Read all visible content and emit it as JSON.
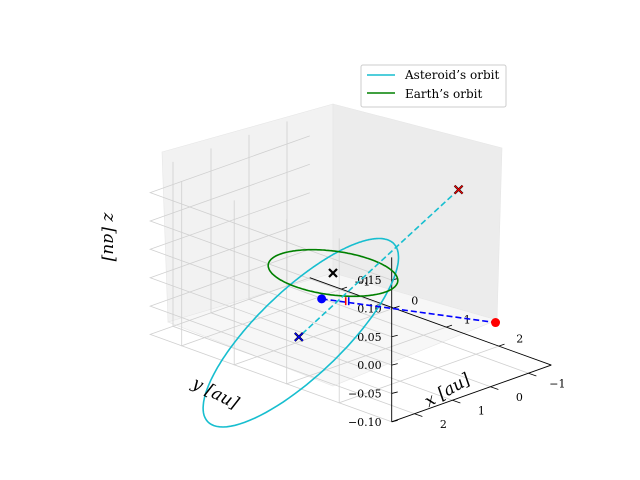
{
  "chart_data": {
    "type": "line3d",
    "title": "",
    "xlabel": "$x$ [au]",
    "ylabel": "$y$ [au]",
    "zlabel": "$z$ [au]",
    "xlabel_text": "x [au]",
    "ylabel_text": "y [au]",
    "zlabel_text": "z [au]",
    "xlim": [
      -1.6,
      3.0
    ],
    "ylim": [
      -1.6,
      2.6
    ],
    "zlim": [
      -0.1,
      0.19
    ],
    "xticks": [
      -1,
      0,
      1,
      2
    ],
    "yticks": [
      -1,
      0,
      1,
      2
    ],
    "zticks": [
      -0.1,
      -0.05,
      0.0,
      0.05,
      0.1,
      0.15
    ],
    "xtick_labels": [
      "−1",
      "0",
      "1",
      "2"
    ],
    "ytick_labels": [
      "−1",
      "0",
      "1",
      "2"
    ],
    "ztick_labels": [
      "−0.10",
      "−0.05",
      "0.00",
      "0.05",
      "0.10",
      "0.15"
    ],
    "grid": true,
    "legend_position": "top-right",
    "series": [
      {
        "name": "Asteroid’s orbit",
        "color": "#17becf",
        "kind": "ellipse",
        "semi_major_axis": 2.0,
        "eccentricity": 0.7,
        "inclination_deg": 5.0,
        "ascending_node_deg": 225,
        "argument_of_perihelion_deg": 30
      },
      {
        "name": "Earth’s orbit",
        "color": "#008000",
        "kind": "circle",
        "radius": 1.0,
        "z": 0.0
      }
    ],
    "markers": [
      {
        "label": "",
        "color": "#0000ff",
        "symbol": "dot",
        "x": 0.58,
        "y": 1.1,
        "z": 0.0
      },
      {
        "label": "",
        "color": "#ff0000",
        "symbol": "dot",
        "x": 2.85,
        "y": -0.34,
        "z": 0.0
      },
      {
        "label": "",
        "color": "#000000",
        "symbol": "x",
        "x": 0.0,
        "y": 0.0,
        "z": 0.0
      },
      {
        "label": "",
        "color": "#000000",
        "symbol": "x",
        "x": 1.35,
        "y": -1.44,
        "z": 0.158
      },
      {
        "label": "",
        "color": "#000000",
        "symbol": "x",
        "x": -0.13,
        "y": 0.72,
        "z": -0.1
      },
      {
        "label": "",
        "color": "#ff0000",
        "symbol": "x",
        "x": 1.35,
        "y": -1.44,
        "z": 0.158
      },
      {
        "label": "",
        "color": "#0000ff",
        "symbol": "x",
        "x": -0.13,
        "y": 0.72,
        "z": -0.1
      },
      {
        "label": "",
        "color": "#ff0000",
        "symbol": "plus",
        "x": 0.43,
        "y": 0.22,
        "z": -0.03
      },
      {
        "label": "",
        "color": "#0000ff",
        "symbol": "plus",
        "x": 0.43,
        "y": 0.22,
        "z": -0.03
      }
    ],
    "dashed_lines": [
      {
        "color": "#0000ff",
        "from": [
          0.58,
          1.1,
          0.0
        ],
        "to": [
          2.85,
          -0.34,
          0.0
        ]
      },
      {
        "color": "#17becf",
        "from": [
          1.35,
          -1.44,
          0.158
        ],
        "to": [
          -0.13,
          0.72,
          -0.1
        ]
      }
    ]
  }
}
